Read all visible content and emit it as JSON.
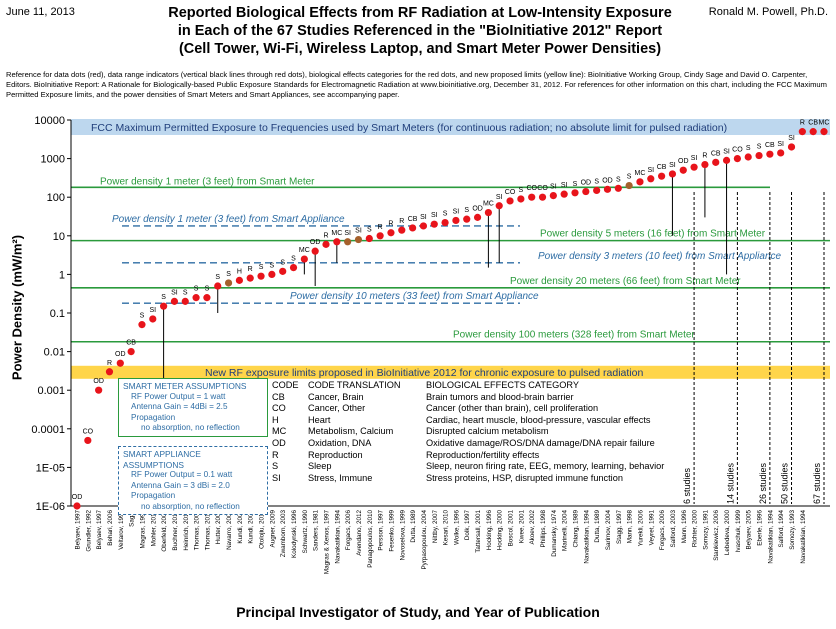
{
  "header": {
    "date": "June 11, 2013",
    "author": "Ronald M. Powell, Ph.D.",
    "title_lines": [
      "Reported Biological Effects from RF Radiation at Low-Intensity Exposure",
      "in Each of the 67 Studies Referenced in the \"BioInitiative 2012\" Report",
      "(Cell Tower, Wi-Fi, Wireless Laptop, and Smart Meter Power Densities)"
    ],
    "reference_note": "Reference for data dots (red), data range indicators (vertical black lines through red dots), biological effects categories for the red dots, and new proposed limits (yellow line): BioInitiative Working Group, Cindy Sage and David O. Carpenter, Editors. BioInitiative Report: A Rationale for Biologically-based Public Exposure Standards for Electromagnetic Radiation at www.bioinitiative.org, December 31, 2012. For references for other information on this chart, including the FCC Maximum Permitted Exposure limits, and the power densities of Smart Meters and Smart Appliances, see accompanying paper."
  },
  "colors": {
    "dot": "#e8141b",
    "highlight_dot": "#a5602c",
    "fcc_band": "#bdd7ee",
    "proposed_band": "#ffd54a",
    "meter_line": "#2a9a3c",
    "appliance_line": "#2e6da4"
  },
  "chart_data": {
    "type": "scatter",
    "y_scale": "log",
    "ylim": [
      1e-06,
      10000
    ],
    "yticks": [
      "1E-06",
      "1E-05",
      "0.0001",
      "0.001",
      "0.01",
      "0.1",
      "1",
      "10",
      "100",
      "1000",
      "10000"
    ],
    "ylabel": "Power Density (mW/m²)",
    "xlabel": "Principal Investigator of Study, and Year of Publication",
    "grid": false,
    "studies": [
      {
        "name": "Belyaev, 1997",
        "y": 1e-06,
        "code": "OD"
      },
      {
        "name": "Grundler, 1992",
        "y": 5e-05,
        "code": "CO"
      },
      {
        "name": "Belyaev, 1997",
        "y": 0.001,
        "code": "OD"
      },
      {
        "name": "Behari, 2006",
        "y": 0.003,
        "code": "R"
      },
      {
        "name": "Veltarov, 1999",
        "y": 0.005,
        "code": "OD"
      },
      {
        "name": "Sagar",
        "y": 0.01,
        "code": "CB"
      },
      {
        "name": "Magras, 1997",
        "y": 0.05,
        "code": "S"
      },
      {
        "name": "Mohler, 2010",
        "y": 0.07,
        "code": "SI"
      },
      {
        "name": "Oberfeld, 2004",
        "y": 0.15,
        "code": "S"
      },
      {
        "name": "Buchner, 2012",
        "y": 0.2,
        "code": "SI"
      },
      {
        "name": "Heinrich, 2010",
        "y": 0.2,
        "code": "S"
      },
      {
        "name": "Thomas, 2008",
        "y": 0.25,
        "code": "S"
      },
      {
        "name": "Thomas, 2010",
        "y": 0.25,
        "code": "S"
      },
      {
        "name": "Hutter, 2006",
        "y": 0.5,
        "code": "S"
      },
      {
        "name": "Navarro, 2003",
        "y": 0.6,
        "code": "S"
      },
      {
        "name": "Kundi, 2009",
        "y": 0.7,
        "code": "H"
      },
      {
        "name": "Kundi, 2009",
        "y": 0.8,
        "code": "R"
      },
      {
        "name": "Otolojiu, 2010",
        "y": 0.9,
        "code": "S"
      },
      {
        "name": "Augner, 2009",
        "y": 1.0,
        "code": "S"
      },
      {
        "name": "Zwamborn, 2003",
        "y": 1.2,
        "code": "S"
      },
      {
        "name": "Kolodynski, 1996",
        "y": 1.5,
        "code": "S"
      },
      {
        "name": "Schwartz, 1990",
        "y": 2.5,
        "code": "MC"
      },
      {
        "name": "Sanders, 1981",
        "y": 4,
        "code": "OD"
      },
      {
        "name": "Magras & Xenos, 1997",
        "y": 6,
        "code": "R"
      },
      {
        "name": "Navakatikian, 1994",
        "y": 7,
        "code": "MC"
      },
      {
        "name": "Forgacs, 2006",
        "y": 7,
        "code": "SI"
      },
      {
        "name": "Avendano, 2012",
        "y": 8,
        "code": "SI"
      },
      {
        "name": "Panagopoulos, 2010",
        "y": 8.5,
        "code": "S"
      },
      {
        "name": "Persson, 1997",
        "y": 10,
        "code": "R"
      },
      {
        "name": "Fesenko, 1999",
        "y": 12,
        "code": "R"
      },
      {
        "name": "Novoselova, 1999",
        "y": 14,
        "code": "R"
      },
      {
        "name": "Dutta, 1989",
        "y": 16,
        "code": "CB"
      },
      {
        "name": "Pyrpasopoulou, 2004",
        "y": 18,
        "code": "SI"
      },
      {
        "name": "Nittby, 2007",
        "y": 20,
        "code": "SI"
      },
      {
        "name": "Kesari, 2010",
        "y": 22,
        "code": "S"
      },
      {
        "name": "Wolke, 1996",
        "y": 25,
        "code": "SI"
      },
      {
        "name": "Dolk, 1997",
        "y": 27,
        "code": "S"
      },
      {
        "name": "Tattersall, 2001",
        "y": 30,
        "code": "OD"
      },
      {
        "name": "Hocking, 1996",
        "y": 40,
        "code": "MC"
      },
      {
        "name": "Hocking, 2000",
        "y": 60,
        "code": "SI"
      },
      {
        "name": "Boscol, 2001",
        "y": 80,
        "code": "CO"
      },
      {
        "name": "Kwee, 2001",
        "y": 90,
        "code": "S"
      },
      {
        "name": "Akoev, 2002",
        "y": 100,
        "code": "CO"
      },
      {
        "name": "Phillips, 1998",
        "y": 100,
        "code": "CO"
      },
      {
        "name": "Dumansky, 1974",
        "y": 110,
        "code": "SI"
      },
      {
        "name": "Marinelli, 2004",
        "y": 120,
        "code": "SI"
      },
      {
        "name": "Chiang, 1989",
        "y": 130,
        "code": "S"
      },
      {
        "name": "Navakatikian, 1994",
        "y": 140,
        "code": "OD"
      },
      {
        "name": "Dutta, 1989",
        "y": 150,
        "code": "S"
      },
      {
        "name": "Sarimov, 2004",
        "y": 160,
        "code": "OD"
      },
      {
        "name": "Stagg, 1997",
        "y": 170,
        "code": "S"
      },
      {
        "name": "Mann, 1998",
        "y": 200,
        "code": "S"
      },
      {
        "name": "Yurekli, 2006",
        "y": 250,
        "code": "MC"
      },
      {
        "name": "Veyret, 1991",
        "y": 300,
        "code": "SI"
      },
      {
        "name": "Forgacs, 2006",
        "y": 350,
        "code": "CB"
      },
      {
        "name": "Salford, 2003",
        "y": 400,
        "code": "SI"
      },
      {
        "name": "Mann, 1996",
        "y": 500,
        "code": "OD"
      },
      {
        "name": "Richter, 2000",
        "y": 600,
        "code": "SI"
      },
      {
        "name": "Somozy, 1991",
        "y": 700,
        "code": "R"
      },
      {
        "name": "Stankiewicz, 2006",
        "y": 800,
        "code": "CB"
      },
      {
        "name": "Lebedeva, 2000",
        "y": 900,
        "code": "SI"
      },
      {
        "name": "Ivaschuk, 1999",
        "y": 1000,
        "code": "CO"
      },
      {
        "name": "Belyaev, 2005",
        "y": 1100,
        "code": "S"
      },
      {
        "name": "Eberle, 1996",
        "y": 1200,
        "code": "S"
      },
      {
        "name": "Navakatikian, 1994",
        "y": 1300,
        "code": "CB"
      },
      {
        "name": "Salford, 1994",
        "y": 1400,
        "code": "SI"
      },
      {
        "name": "Somozy, 1993",
        "y": 2000,
        "code": "SI"
      },
      {
        "name": "Navakatikian, 1994",
        "y": 5000,
        "code": "R"
      },
      {
        "name": "",
        "y": 5000,
        "code": "CB"
      },
      {
        "name": "",
        "y": 5000,
        "code": "MC"
      }
    ],
    "reference_bands": [
      {
        "label": "FCC Maximum Permitted Exposure to Frequencies used by Smart Meters (for continuous radiation; no absolute limit for pulsed radiation)",
        "y": 10000
      },
      {
        "label": "New RF exposure limits proposed in BioInitiative 2012 for chronic exposure to pulsed radiation",
        "y": 0.003
      }
    ],
    "reference_lines": [
      {
        "label": "Power density 1 meter (3 feet) from Smart Meter",
        "y": 180,
        "kind": "meter"
      },
      {
        "label": "Power density 1 meter (3 feet) from Smart Appliance",
        "y": 18,
        "kind": "appliance"
      },
      {
        "label": "Power density 5 meters (16 feet) from Smart Meter",
        "y": 7.5,
        "kind": "meter"
      },
      {
        "label": "Power density 3 meters (10 feet) from Smart Appliance",
        "y": 2,
        "kind": "appliance"
      },
      {
        "label": "Power density 20 meters (66 feet) from Smart Meter",
        "y": 0.45,
        "kind": "meter"
      },
      {
        "label": "Power density 10 meters (33 feet) from Smart Appliance",
        "y": 0.18,
        "kind": "appliance"
      },
      {
        "label": "Power density 100 meters (328 feet) from Smart Meter",
        "y": 0.018,
        "kind": "meter"
      }
    ],
    "study_count_markers": [
      "6 studies",
      "14 studies",
      "26 studies",
      "50 studies",
      "67 studies"
    ]
  },
  "meter_assumptions": {
    "title": "SMART METER ASSUMPTIONS",
    "lines": [
      "RF Power Output = 1 watt",
      "Antenna Gain = 4dBi = 2.5",
      "Propagation",
      "no absorption, no reflection"
    ]
  },
  "appliance_assumptions": {
    "title": "SMART APPLIANCE ASSUMPTIONS",
    "lines": [
      "RF Power Output = 0.1 watt",
      "Antenna Gain = 3 dBi = 2.0",
      "Propagation",
      "no absorption, no reflection"
    ]
  },
  "codes": {
    "headers": [
      "CODE",
      "CODE TRANSLATION",
      "BIOLOGICAL EFFECTS CATEGORY"
    ],
    "rows": [
      [
        "CB",
        "Cancer, Brain",
        "Brain tumors and blood-brain barrier"
      ],
      [
        "CO",
        "Cancer, Other",
        "Cancer (other than brain), cell proliferation"
      ],
      [
        "H",
        "Heart",
        "Cardiac, heart muscle, blood-pressure, vascular effects"
      ],
      [
        "MC",
        "Metabolism, Calcium",
        "Disrupted calcium metabolism"
      ],
      [
        "OD",
        "Oxidation, DNA",
        "Oxidative damage/ROS/DNA damage/DNA repair failure"
      ],
      [
        "R",
        "Reproduction",
        "Reproduction/fertility effects"
      ],
      [
        "S",
        "Sleep",
        "Sleep, neuron firing rate, EEG, memory, learning, behavior"
      ],
      [
        "SI",
        "Stress, Immune",
        "Stress proteins, HSP, disrupted immune function"
      ]
    ]
  }
}
